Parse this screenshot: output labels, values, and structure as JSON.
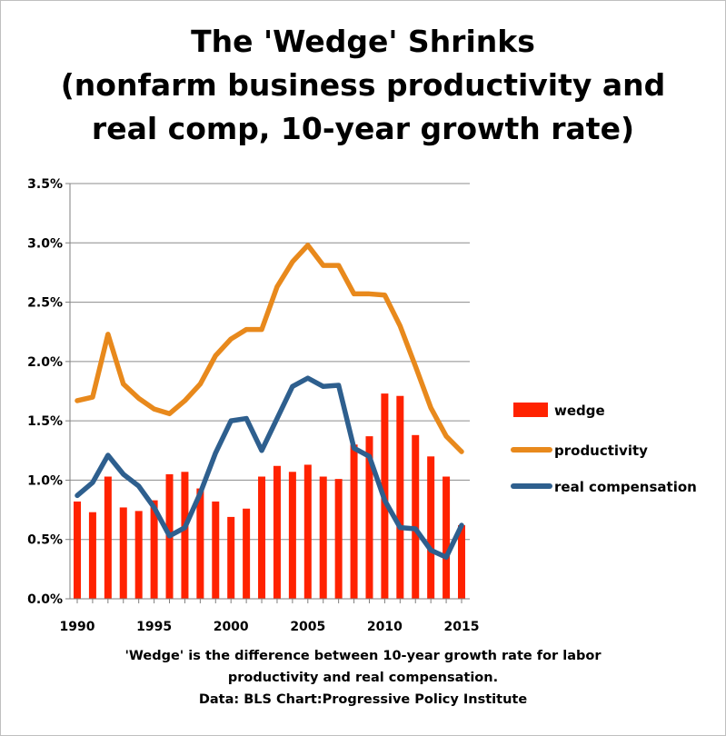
{
  "title_lines": [
    "The 'Wedge' Shrinks",
    "(nonfarm business productivity and",
    "real comp, 10-year growth rate)"
  ],
  "footer_lines": [
    "'Wedge' is the difference between 10-year growth rate for labor",
    "productivity and real compensation.",
    "Data: BLS  Chart:Progressive Policy Institute"
  ],
  "colors": {
    "wedge": "#ff2200",
    "productivity": "#e8891c",
    "real_compensation": "#2e5f8e"
  },
  "chart_data": {
    "type": "bar+line",
    "x": [
      1990,
      1991,
      1992,
      1993,
      1994,
      1995,
      1996,
      1997,
      1998,
      1999,
      2000,
      2001,
      2002,
      2003,
      2004,
      2005,
      2006,
      2007,
      2008,
      2009,
      2010,
      2011,
      2012,
      2013,
      2014,
      2015
    ],
    "x_ticks": [
      "1990",
      "1995",
      "2000",
      "2005",
      "2010",
      "2015"
    ],
    "y_ticks": [
      "0.0%",
      "0.5%",
      "1.0%",
      "1.5%",
      "2.0%",
      "2.5%",
      "3.0%",
      "3.5%"
    ],
    "ylim": [
      0,
      3.5
    ],
    "xlim": [
      1990,
      2015
    ],
    "grid": true,
    "legend_position": "right",
    "series": [
      {
        "name": "wedge",
        "kind": "bar",
        "values": [
          0.82,
          0.73,
          1.03,
          0.77,
          0.74,
          0.83,
          1.05,
          1.07,
          0.93,
          0.82,
          0.69,
          0.76,
          1.03,
          1.12,
          1.07,
          1.13,
          1.03,
          1.01,
          1.3,
          1.37,
          1.73,
          1.71,
          1.38,
          1.2,
          1.03,
          0.62
        ]
      },
      {
        "name": "productivity",
        "kind": "line",
        "values": [
          1.67,
          1.7,
          2.23,
          1.81,
          1.69,
          1.6,
          1.56,
          1.67,
          1.81,
          2.05,
          2.19,
          2.27,
          2.27,
          2.63,
          2.84,
          2.98,
          2.81,
          2.81,
          2.57,
          2.57,
          2.56,
          2.3,
          1.96,
          1.61,
          1.37,
          1.24
        ]
      },
      {
        "name": "real compensation",
        "kind": "line",
        "values": [
          0.87,
          0.98,
          1.21,
          1.05,
          0.95,
          0.77,
          0.53,
          0.6,
          0.89,
          1.23,
          1.5,
          1.52,
          1.25,
          1.52,
          1.79,
          1.86,
          1.79,
          1.8,
          1.27,
          1.2,
          0.83,
          0.6,
          0.59,
          0.41,
          0.35,
          0.62
        ]
      }
    ]
  }
}
